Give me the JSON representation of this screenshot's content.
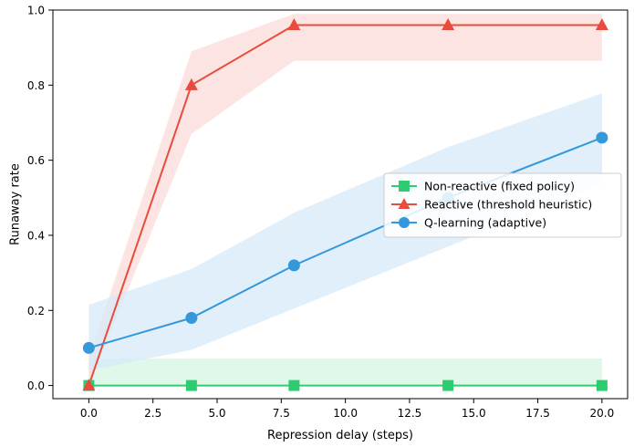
{
  "chart_data": {
    "type": "line",
    "xlabel": "Repression delay (steps)",
    "ylabel": "Runaway rate",
    "xlim": [
      -1.4,
      21.0
    ],
    "ylim": [
      -0.035,
      1.0
    ],
    "x_ticks": [
      0.0,
      2.5,
      5.0,
      7.5,
      10.0,
      12.5,
      15.0,
      17.5,
      20.0
    ],
    "x_tick_labels": [
      "0.0",
      "2.5",
      "5.0",
      "7.5",
      "10.0",
      "12.5",
      "15.0",
      "17.5",
      "20.0"
    ],
    "y_ticks": [
      0.0,
      0.2,
      0.4,
      0.6,
      0.8,
      1.0
    ],
    "y_tick_labels": [
      "0.0",
      "0.2",
      "0.4",
      "0.6",
      "0.8",
      "1.0"
    ],
    "grid": false,
    "legend_position": "center-right",
    "x": [
      0,
      4,
      8,
      14,
      20
    ],
    "series": [
      {
        "name": "Non-reactive (fixed policy)",
        "values": [
          0.0,
          0.0,
          0.0,
          0.0,
          0.0
        ],
        "band_low": [
          0.0,
          0.0,
          0.0,
          0.0,
          0.0
        ],
        "band_high": [
          0.072,
          0.072,
          0.072,
          0.072,
          0.072
        ],
        "color": "#2ecc71",
        "band_color": "#d5f5e3",
        "marker": "square"
      },
      {
        "name": "Reactive (threshold heuristic)",
        "values": [
          0.0,
          0.8,
          0.96,
          0.96,
          0.96
        ],
        "band_low": [
          0.0,
          0.67,
          0.865,
          0.865,
          0.865
        ],
        "band_high": [
          0.075,
          0.89,
          0.99,
          0.99,
          0.99
        ],
        "color": "#e74c3c",
        "band_color": "#fadbd8",
        "marker": "triangle"
      },
      {
        "name": "Q-learning (adaptive)",
        "values": [
          0.1,
          0.18,
          0.32,
          0.5,
          0.66
        ],
        "band_low": [
          0.04,
          0.095,
          0.205,
          0.37,
          0.535
        ],
        "band_high": [
          0.215,
          0.31,
          0.46,
          0.635,
          0.778
        ],
        "color": "#3498db",
        "band_color": "#d6eaf8",
        "marker": "circle"
      }
    ]
  }
}
